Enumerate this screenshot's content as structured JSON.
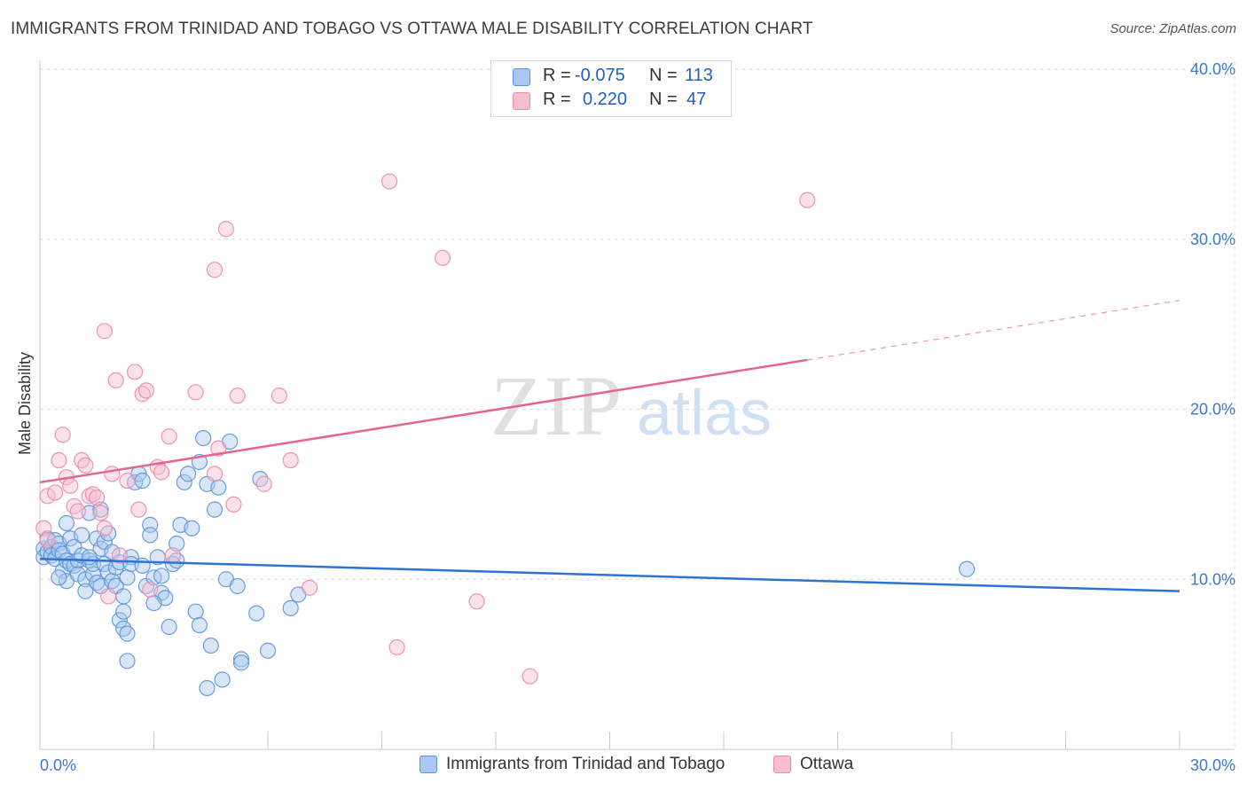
{
  "title": "IMMIGRANTS FROM TRINIDAD AND TOBAGO VS OTTAWA MALE DISABILITY CORRELATION CHART",
  "source": "Source: ZipAtlas.com",
  "watermark": {
    "zip": "ZIP",
    "atlas": "atlas"
  },
  "colors": {
    "blue_fill": "#a9c7f0",
    "blue_stroke": "#5b93dc",
    "blue_line": "#2d74d2",
    "pink_fill": "#f7bdd0",
    "pink_stroke": "#eb8aaa",
    "pink_line": "#e5658f",
    "axis_label": "#3c78c8",
    "grid": "#dcdcdc"
  },
  "stats": {
    "rows": [
      {
        "r_label": "R =",
        "r_value": "-0.075",
        "n_label": "N =",
        "n_value": "113",
        "series": "blue"
      },
      {
        "r_label": "R =",
        "r_value": "0.220",
        "n_label": "N =",
        "n_value": "47",
        "series": "pink"
      }
    ]
  },
  "legend": [
    {
      "label": "Immigrants from Trinidad and Tobago",
      "series": "blue"
    },
    {
      "label": "Ottawa",
      "series": "pink"
    }
  ],
  "chart_data": {
    "type": "scatter",
    "xlabel": "",
    "ylabel": "Male Disability",
    "xlim": [
      0,
      30
    ],
    "ylim": [
      0,
      40
    ],
    "x_tick_labels": [
      {
        "value": 0,
        "label": "0.0%"
      },
      {
        "value": 30,
        "label": "30.0%"
      }
    ],
    "y_tick_labels": [
      {
        "value": 10,
        "label": "10.0%"
      },
      {
        "value": 20,
        "label": "20.0%"
      },
      {
        "value": 30,
        "label": "30.0%"
      },
      {
        "value": 40,
        "label": "40.0%"
      }
    ],
    "x_minor_ticks": [
      3,
      6,
      9,
      12,
      15,
      18,
      21,
      24,
      27,
      30
    ],
    "grid": true,
    "series": [
      {
        "name": "Immigrants from Trinidad and Tobago",
        "color": "blue",
        "r": -0.075,
        "n": 113,
        "trend": {
          "x": [
            0,
            30
          ],
          "y": [
            11.2,
            9.3
          ],
          "dashed_from": null
        },
        "points": [
          [
            0.1,
            11.8
          ],
          [
            0.1,
            11.3
          ],
          [
            0.2,
            12.4
          ],
          [
            0.2,
            11.6
          ],
          [
            0.3,
            11.9
          ],
          [
            0.3,
            11.4
          ],
          [
            0.4,
            12.3
          ],
          [
            0.4,
            11.2
          ],
          [
            0.5,
            12.1
          ],
          [
            0.5,
            11.7
          ],
          [
            0.6,
            11.5
          ],
          [
            0.6,
            10.5
          ],
          [
            0.7,
            11.1
          ],
          [
            0.7,
            9.9
          ],
          [
            0.8,
            10.9
          ],
          [
            0.8,
            12.4
          ],
          [
            0.9,
            11.9
          ],
          [
            0.9,
            10.8
          ],
          [
            1.0,
            11.1
          ],
          [
            1.0,
            10.3
          ],
          [
            1.1,
            11.4
          ],
          [
            1.1,
            12.6
          ],
          [
            1.2,
            10.0
          ],
          [
            1.2,
            9.3
          ],
          [
            1.3,
            11.1
          ],
          [
            1.3,
            13.9
          ],
          [
            1.4,
            10.3
          ],
          [
            1.4,
            10.9
          ],
          [
            1.5,
            9.8
          ],
          [
            1.5,
            12.4
          ],
          [
            1.6,
            11.8
          ],
          [
            1.6,
            9.6
          ],
          [
            1.7,
            10.9
          ],
          [
            1.7,
            12.2
          ],
          [
            1.8,
            10.4
          ],
          [
            1.8,
            12.7
          ],
          [
            1.9,
            11.6
          ],
          [
            1.9,
            9.9
          ],
          [
            2.0,
            10.7
          ],
          [
            2.0,
            9.6
          ],
          [
            2.1,
            11.0
          ],
          [
            2.1,
            7.6
          ],
          [
            2.2,
            9.0
          ],
          [
            2.2,
            7.1
          ],
          [
            2.3,
            10.1
          ],
          [
            2.3,
            6.8
          ],
          [
            2.4,
            11.3
          ],
          [
            2.4,
            10.9
          ],
          [
            2.2,
            8.1
          ],
          [
            2.5,
            15.7
          ],
          [
            2.6,
            16.2
          ],
          [
            2.7,
            15.8
          ],
          [
            2.8,
            9.6
          ],
          [
            2.9,
            13.2
          ],
          [
            2.9,
            12.6
          ],
          [
            3.0,
            10.1
          ],
          [
            3.1,
            11.3
          ],
          [
            3.2,
            9.2
          ],
          [
            3.2,
            10.2
          ],
          [
            3.3,
            8.9
          ],
          [
            3.4,
            7.2
          ],
          [
            3.5,
            10.9
          ],
          [
            3.6,
            12.1
          ],
          [
            3.7,
            13.2
          ],
          [
            3.8,
            15.7
          ],
          [
            3.9,
            16.2
          ],
          [
            4.0,
            13.0
          ],
          [
            4.1,
            8.1
          ],
          [
            4.2,
            7.3
          ],
          [
            4.2,
            16.9
          ],
          [
            4.3,
            18.3
          ],
          [
            4.4,
            15.6
          ],
          [
            4.5,
            6.1
          ],
          [
            4.6,
            14.1
          ],
          [
            4.7,
            15.4
          ],
          [
            4.8,
            4.1
          ],
          [
            4.9,
            10.0
          ],
          [
            5.0,
            18.1
          ],
          [
            5.2,
            9.6
          ],
          [
            5.3,
            5.3
          ],
          [
            5.3,
            5.1
          ],
          [
            5.7,
            8.0
          ],
          [
            5.8,
            15.9
          ],
          [
            6.0,
            5.8
          ],
          [
            6.6,
            8.3
          ],
          [
            6.8,
            9.1
          ],
          [
            4.4,
            3.6
          ],
          [
            2.3,
            5.2
          ],
          [
            1.6,
            14.1
          ],
          [
            0.7,
            13.3
          ],
          [
            3.0,
            8.6
          ],
          [
            1.3,
            11.3
          ],
          [
            0.5,
            10.1
          ],
          [
            2.7,
            10.8
          ],
          [
            3.6,
            11.1
          ],
          [
            24.4,
            10.6
          ]
        ]
      },
      {
        "name": "Ottawa",
        "color": "pink",
        "r": 0.22,
        "n": 47,
        "trend": {
          "x": [
            0,
            20.2,
            30
          ],
          "y": [
            15.7,
            22.9,
            26.4
          ],
          "dashed_from": 20.2
        },
        "points": [
          [
            0.1,
            13.0
          ],
          [
            0.2,
            12.3
          ],
          [
            0.2,
            14.9
          ],
          [
            0.4,
            15.1
          ],
          [
            0.5,
            17.0
          ],
          [
            0.6,
            18.5
          ],
          [
            0.7,
            16.0
          ],
          [
            0.8,
            15.5
          ],
          [
            0.9,
            14.3
          ],
          [
            1.0,
            14.0
          ],
          [
            1.1,
            17.0
          ],
          [
            1.2,
            16.7
          ],
          [
            1.3,
            14.9
          ],
          [
            1.4,
            15.0
          ],
          [
            1.5,
            14.8
          ],
          [
            1.6,
            13.9
          ],
          [
            1.7,
            13.0
          ],
          [
            1.7,
            24.6
          ],
          [
            1.8,
            9.0
          ],
          [
            1.9,
            16.2
          ],
          [
            2.0,
            21.7
          ],
          [
            2.1,
            11.4
          ],
          [
            2.3,
            15.8
          ],
          [
            2.5,
            22.2
          ],
          [
            2.6,
            14.1
          ],
          [
            2.7,
            20.9
          ],
          [
            2.8,
            21.1
          ],
          [
            2.9,
            9.4
          ],
          [
            3.1,
            16.6
          ],
          [
            3.2,
            16.3
          ],
          [
            3.4,
            18.4
          ],
          [
            3.5,
            11.4
          ],
          [
            4.1,
            21.0
          ],
          [
            4.6,
            28.2
          ],
          [
            4.6,
            16.2
          ],
          [
            4.7,
            17.7
          ],
          [
            4.9,
            30.6
          ],
          [
            5.1,
            14.4
          ],
          [
            5.2,
            20.8
          ],
          [
            5.9,
            15.6
          ],
          [
            6.3,
            20.8
          ],
          [
            6.6,
            17.0
          ],
          [
            7.1,
            9.5
          ],
          [
            9.2,
            33.4
          ],
          [
            9.4,
            6.0
          ],
          [
            10.6,
            28.9
          ],
          [
            11.5,
            8.7
          ],
          [
            12.9,
            4.3
          ],
          [
            20.2,
            32.3
          ]
        ]
      }
    ]
  }
}
